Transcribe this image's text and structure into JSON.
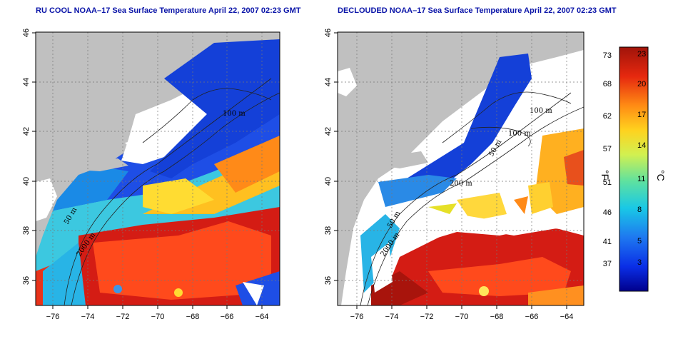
{
  "left_panel": {
    "title": "RU COOL NOAA–17 Sea Surface Temperature April 22, 2007 02:23 GMT",
    "contour_labels": [
      "100 m",
      "50 m",
      "2000 m"
    ]
  },
  "right_panel": {
    "title": "DECLOUDED NOAA–17 Sea Surface Temperature April 22, 2007 02:23 GMT",
    "contour_labels": [
      "100 m",
      "100 m",
      "50 m",
      "200 m",
      "50 m",
      "2000 m"
    ]
  },
  "axes": {
    "x_ticks": [
      "−76",
      "−74",
      "−72",
      "−70",
      "−68",
      "−66",
      "−64"
    ],
    "y_ticks": [
      "36",
      "38",
      "40",
      "42",
      "44",
      "46"
    ],
    "x_range": [
      -77.0,
      -63.0
    ],
    "y_range": [
      35.0,
      46.0
    ]
  },
  "colorbar": {
    "f_label": "°F",
    "c_label": "°C",
    "f_ticks": [
      "73",
      "68",
      "62",
      "57",
      "51",
      "46",
      "41",
      "37"
    ],
    "c_ticks": [
      "23",
      "20",
      "17",
      "14",
      "11",
      "8",
      "5",
      "3"
    ]
  },
  "colors": {
    "land": "#c0c0c0",
    "cloud": "#ffffff",
    "cold": "#1030d0",
    "warm": "#c81414"
  }
}
